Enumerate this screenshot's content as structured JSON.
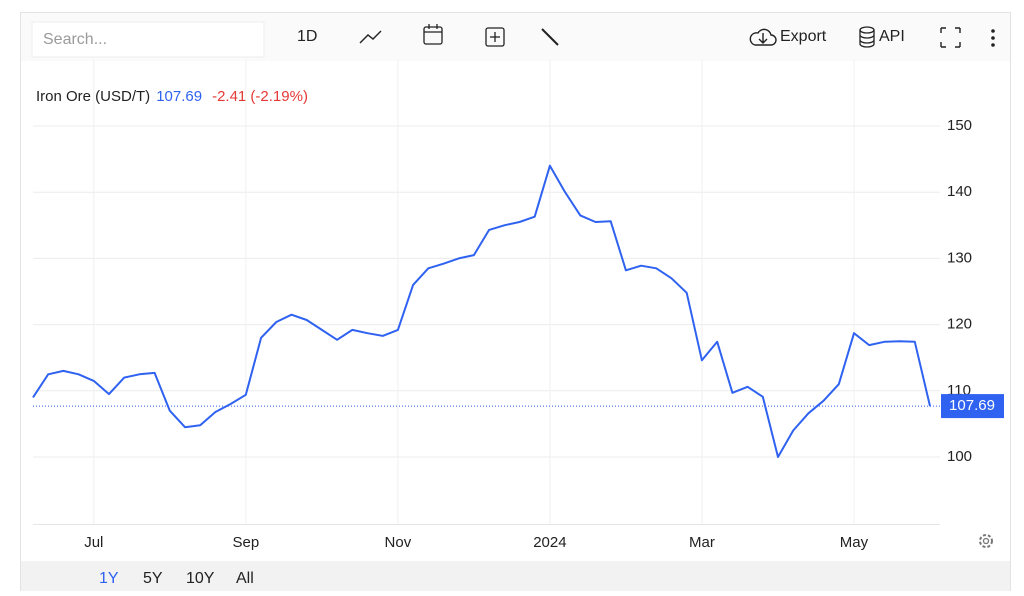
{
  "toolbar": {
    "search_placeholder": "Search...",
    "interval": "1D",
    "export": "Export",
    "api": "API"
  },
  "chart_data": {
    "type": "line",
    "change_label": "-2.41 (-2.19%)",
    "categories": [
      null,
      null,
      null,
      null,
      "Jul",
      null,
      null,
      null,
      null,
      null,
      null,
      null,
      null,
      null,
      "Sep",
      null,
      null,
      null,
      null,
      null,
      null,
      null,
      null,
      null,
      "Nov",
      null,
      null,
      null,
      null,
      null,
      null,
      null,
      null,
      null,
      "2024",
      null,
      null,
      null,
      null,
      null,
      null,
      null,
      null,
      null,
      "Mar",
      null,
      null,
      null,
      null,
      null,
      null,
      null,
      null,
      null,
      "May",
      null,
      null,
      null,
      null,
      null
    ],
    "series": [
      {
        "name": "Iron Ore (USD/T)",
        "color": "#2f62f0",
        "values": [
          109,
          112.5,
          113,
          112.5,
          111.5,
          109.5,
          112,
          112.5,
          112.7,
          107,
          104.5,
          104.8,
          106.8,
          108,
          109.4,
          118,
          120.4,
          121.5,
          120.7,
          119.2,
          117.7,
          119.2,
          118.7,
          118.3,
          119.2,
          126,
          128.5,
          129.2,
          130,
          130.5,
          134.3,
          135,
          135.5,
          136.3,
          144,
          140,
          136.5,
          135.5,
          135.6,
          128.2,
          128.9,
          128.5,
          127,
          124.8,
          114.6,
          117.4,
          109.7,
          110.6,
          109.1,
          100,
          104,
          106.6,
          108.5,
          111,
          118.7,
          116.9,
          117.4,
          117.5,
          117.4,
          107.69
        ]
      }
    ],
    "ylim": [
      90,
      160
    ],
    "yticks": [
      100,
      110,
      120,
      130,
      140,
      150
    ],
    "grid": true
  },
  "range_buttons": [
    "1Y",
    "5Y",
    "10Y",
    "All"
  ]
}
